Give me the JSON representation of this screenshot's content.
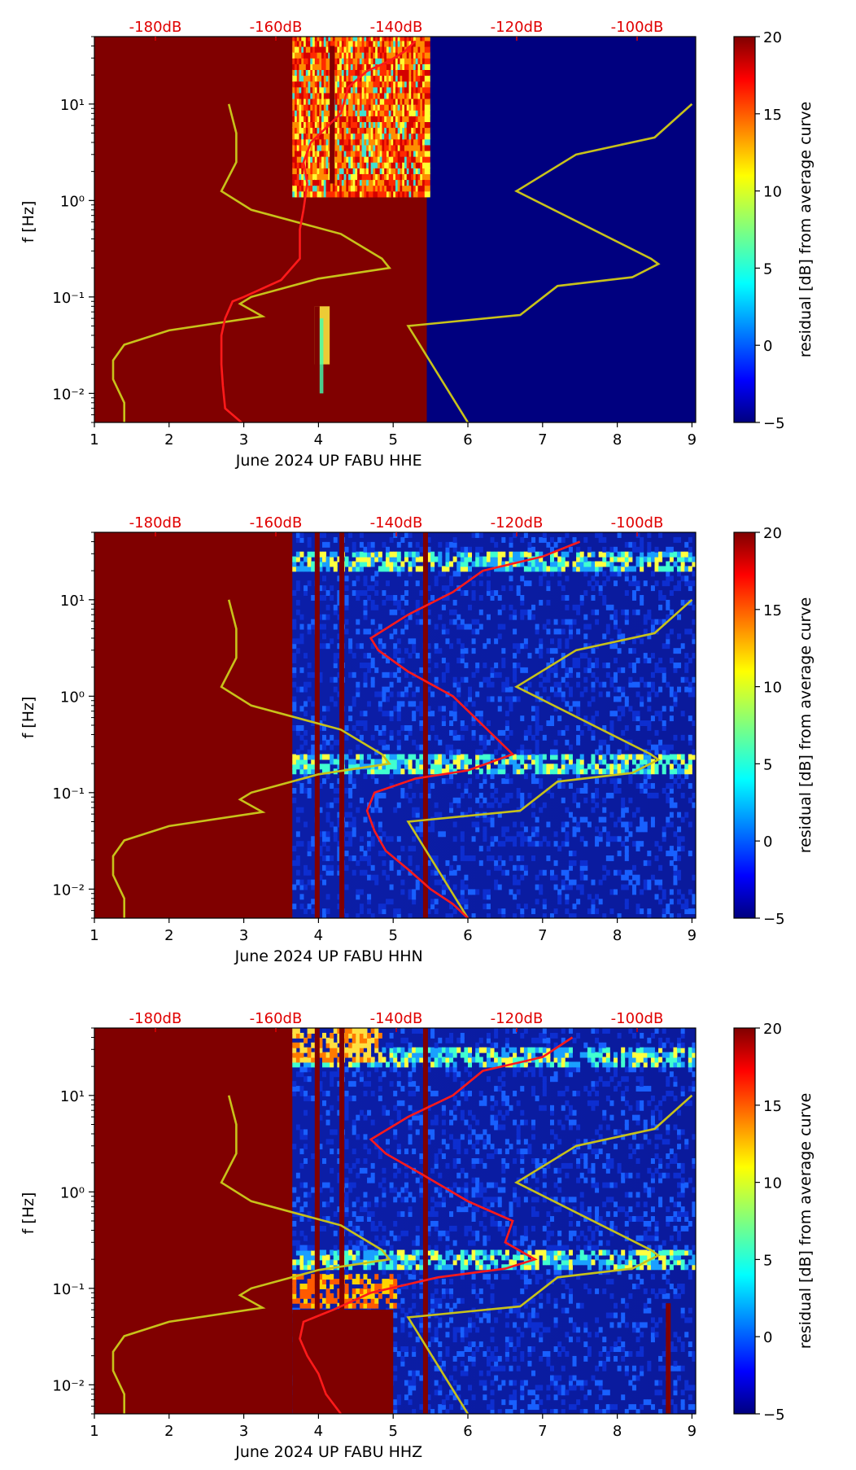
{
  "colors": {
    "saturated_high": "#800000",
    "saturated_low": "#00007f",
    "psd_curve": "#ff1a1a",
    "noise_model": "#c8c21a",
    "top_axis_text": "#e00000"
  },
  "colorbar": {
    "label": "residual [dB] from average curve",
    "range": [
      -5,
      20
    ],
    "ticks": [
      "20",
      "15",
      "10",
      "5",
      "0",
      "−5"
    ],
    "colormap": "jet"
  },
  "chart_data": [
    {
      "type": "heatmap",
      "xlabel": "June 2024 UP FABU  HHE",
      "ylabel": "f [Hz]",
      "x_ticks": [
        "1",
        "2",
        "3",
        "4",
        "5",
        "6",
        "7",
        "8",
        "9"
      ],
      "xlim": [
        1,
        9.05
      ],
      "y_ticks": [
        "10⁻²",
        "10⁻¹",
        "10⁰",
        "10¹"
      ],
      "ylim_hz": [
        0.005,
        50
      ],
      "y_scale": "log",
      "top_axis_ticks": [
        "-180dB",
        "-160dB",
        "-140dB",
        "-120dB",
        "-100dB"
      ],
      "top_axis_values_db": [
        -180,
        -160,
        -140,
        -120,
        -100
      ],
      "description_of_fill": "high before day 5.45, low after",
      "data_start_day": 3.65,
      "red_curve": [
        [
          2.97,
          0.005
        ],
        [
          2.75,
          0.007
        ],
        [
          2.72,
          0.012
        ],
        [
          2.7,
          0.02
        ],
        [
          2.7,
          0.04
        ],
        [
          2.75,
          0.06
        ],
        [
          2.85,
          0.09
        ],
        [
          3.0,
          0.1
        ],
        [
          3.5,
          0.15
        ],
        [
          3.75,
          0.25
        ],
        [
          3.75,
          0.5
        ],
        [
          3.8,
          0.8
        ],
        [
          3.85,
          1.5
        ],
        [
          3.8,
          2.5
        ],
        [
          3.9,
          4
        ],
        [
          4.3,
          8
        ],
        [
          4.4,
          15
        ],
        [
          4.65,
          22
        ],
        [
          4.95,
          28
        ],
        [
          5.15,
          35
        ],
        [
          5.3,
          45
        ]
      ],
      "model_low": [
        [
          1.4,
          0.005
        ],
        [
          1.4,
          0.008
        ],
        [
          1.25,
          0.014
        ],
        [
          1.25,
          0.022
        ],
        [
          1.4,
          0.032
        ],
        [
          2.0,
          0.045
        ],
        [
          3.25,
          0.063
        ],
        [
          2.95,
          0.085
        ],
        [
          3.1,
          0.1
        ],
        [
          4.0,
          0.155
        ],
        [
          4.95,
          0.2
        ],
        [
          4.85,
          0.25
        ],
        [
          4.3,
          0.45
        ],
        [
          3.1,
          0.8
        ],
        [
          2.7,
          1.25
        ],
        [
          2.9,
          2.5
        ],
        [
          2.9,
          5
        ],
        [
          2.8,
          10
        ]
      ],
      "model_high": [
        [
          6.0,
          0.005
        ],
        [
          5.2,
          0.05
        ],
        [
          6.7,
          0.065
        ],
        [
          7.2,
          0.13
        ],
        [
          8.2,
          0.16
        ],
        [
          8.55,
          0.22
        ],
        [
          8.45,
          0.25
        ],
        [
          6.65,
          1.25
        ],
        [
          7.45,
          3
        ],
        [
          8.5,
          4.5
        ],
        [
          9.0,
          10
        ]
      ],
      "gaps_high": [
        [
          3.95,
          0.005,
          0.08
        ],
        [
          4.15,
          1.5,
          40
        ]
      ]
    },
    {
      "type": "heatmap",
      "xlabel": "June 2024 UP FABU  HHN",
      "ylabel": "f [Hz]",
      "x_ticks": [
        "1",
        "2",
        "3",
        "4",
        "5",
        "6",
        "7",
        "8",
        "9"
      ],
      "xlim": [
        1,
        9.05
      ],
      "y_ticks": [
        "10⁻²",
        "10⁻¹",
        "10⁰",
        "10¹"
      ],
      "ylim_hz": [
        0.005,
        50
      ],
      "y_scale": "log",
      "top_axis_ticks": [
        "-180dB",
        "-160dB",
        "-140dB",
        "-120dB",
        "-100dB"
      ],
      "top_axis_values_db": [
        -180,
        -160,
        -140,
        -120,
        -100
      ],
      "data_start_day": 3.65,
      "red_curve": [
        [
          6.0,
          0.005
        ],
        [
          5.8,
          0.007
        ],
        [
          5.5,
          0.01
        ],
        [
          5.2,
          0.016
        ],
        [
          4.9,
          0.025
        ],
        [
          4.75,
          0.04
        ],
        [
          4.65,
          0.065
        ],
        [
          4.75,
          0.1
        ],
        [
          5.3,
          0.14
        ],
        [
          6.0,
          0.17
        ],
        [
          6.6,
          0.25
        ],
        [
          6.2,
          0.5
        ],
        [
          5.8,
          1.0
        ],
        [
          5.2,
          1.8
        ],
        [
          4.8,
          3
        ],
        [
          4.7,
          4
        ],
        [
          5.2,
          7
        ],
        [
          5.8,
          12
        ],
        [
          6.2,
          20
        ],
        [
          7.0,
          28
        ],
        [
          7.5,
          40
        ]
      ],
      "model_low": [
        [
          1.4,
          0.005
        ],
        [
          1.4,
          0.008
        ],
        [
          1.25,
          0.014
        ],
        [
          1.25,
          0.022
        ],
        [
          1.4,
          0.032
        ],
        [
          2.0,
          0.045
        ],
        [
          3.25,
          0.063
        ],
        [
          2.95,
          0.085
        ],
        [
          3.1,
          0.1
        ],
        [
          4.0,
          0.155
        ],
        [
          4.95,
          0.2
        ],
        [
          4.85,
          0.25
        ],
        [
          4.3,
          0.45
        ],
        [
          3.1,
          0.8
        ],
        [
          2.7,
          1.25
        ],
        [
          2.9,
          2.5
        ],
        [
          2.9,
          5
        ],
        [
          2.8,
          10
        ]
      ],
      "model_high": [
        [
          6.0,
          0.005
        ],
        [
          5.2,
          0.05
        ],
        [
          6.7,
          0.065
        ],
        [
          7.2,
          0.13
        ],
        [
          8.2,
          0.16
        ],
        [
          8.55,
          0.22
        ],
        [
          8.45,
          0.25
        ],
        [
          6.65,
          1.25
        ],
        [
          7.45,
          3
        ],
        [
          8.5,
          4.5
        ],
        [
          9.0,
          10
        ]
      ],
      "gaps_high": [
        [
          3.95,
          0.005,
          50
        ],
        [
          4.28,
          0.005,
          50
        ],
        [
          5.4,
          0.005,
          50
        ]
      ]
    },
    {
      "type": "heatmap",
      "xlabel": "June 2024 UP FABU  HHZ",
      "ylabel": "f [Hz]",
      "x_ticks": [
        "1",
        "2",
        "3",
        "4",
        "5",
        "6",
        "7",
        "8",
        "9"
      ],
      "xlim": [
        1,
        9.05
      ],
      "y_ticks": [
        "10⁻²",
        "10⁻¹",
        "10⁰",
        "10¹"
      ],
      "ylim_hz": [
        0.005,
        50
      ],
      "y_scale": "log",
      "top_axis_ticks": [
        "-180dB",
        "-160dB",
        "-140dB",
        "-120dB",
        "-100dB"
      ],
      "top_axis_values_db": [
        -180,
        -160,
        -140,
        -120,
        -100
      ],
      "data_start_day": 3.65,
      "red_curve": [
        [
          4.3,
          0.005
        ],
        [
          4.1,
          0.008
        ],
        [
          4.0,
          0.013
        ],
        [
          3.85,
          0.02
        ],
        [
          3.75,
          0.03
        ],
        [
          3.8,
          0.045
        ],
        [
          4.2,
          0.06
        ],
        [
          4.7,
          0.09
        ],
        [
          5.6,
          0.13
        ],
        [
          6.5,
          0.16
        ],
        [
          6.9,
          0.2
        ],
        [
          6.5,
          0.3
        ],
        [
          6.6,
          0.5
        ],
        [
          6.0,
          0.8
        ],
        [
          5.4,
          1.5
        ],
        [
          4.9,
          2.5
        ],
        [
          4.7,
          3.5
        ],
        [
          5.2,
          6
        ],
        [
          5.8,
          10
        ],
        [
          6.2,
          18
        ],
        [
          7.0,
          25
        ],
        [
          7.4,
          40
        ]
      ],
      "model_low": [
        [
          1.4,
          0.005
        ],
        [
          1.4,
          0.008
        ],
        [
          1.25,
          0.014
        ],
        [
          1.25,
          0.022
        ],
        [
          1.4,
          0.032
        ],
        [
          2.0,
          0.045
        ],
        [
          3.25,
          0.063
        ],
        [
          2.95,
          0.085
        ],
        [
          3.1,
          0.1
        ],
        [
          4.0,
          0.155
        ],
        [
          4.95,
          0.2
        ],
        [
          4.85,
          0.25
        ],
        [
          4.3,
          0.45
        ],
        [
          3.1,
          0.8
        ],
        [
          2.7,
          1.25
        ],
        [
          2.9,
          2.5
        ],
        [
          2.9,
          5
        ],
        [
          2.8,
          10
        ]
      ],
      "model_high": [
        [
          6.0,
          0.005
        ],
        [
          5.2,
          0.05
        ],
        [
          6.7,
          0.065
        ],
        [
          7.2,
          0.13
        ],
        [
          8.2,
          0.16
        ],
        [
          8.55,
          0.22
        ],
        [
          8.45,
          0.25
        ],
        [
          6.65,
          1.25
        ],
        [
          7.45,
          3
        ],
        [
          8.5,
          4.5
        ],
        [
          9.0,
          10
        ]
      ],
      "gaps_high": [
        [
          3.95,
          0.005,
          50
        ],
        [
          4.28,
          0.005,
          50
        ],
        [
          5.4,
          0.005,
          50
        ],
        [
          8.65,
          0.005,
          0.07
        ]
      ]
    }
  ]
}
